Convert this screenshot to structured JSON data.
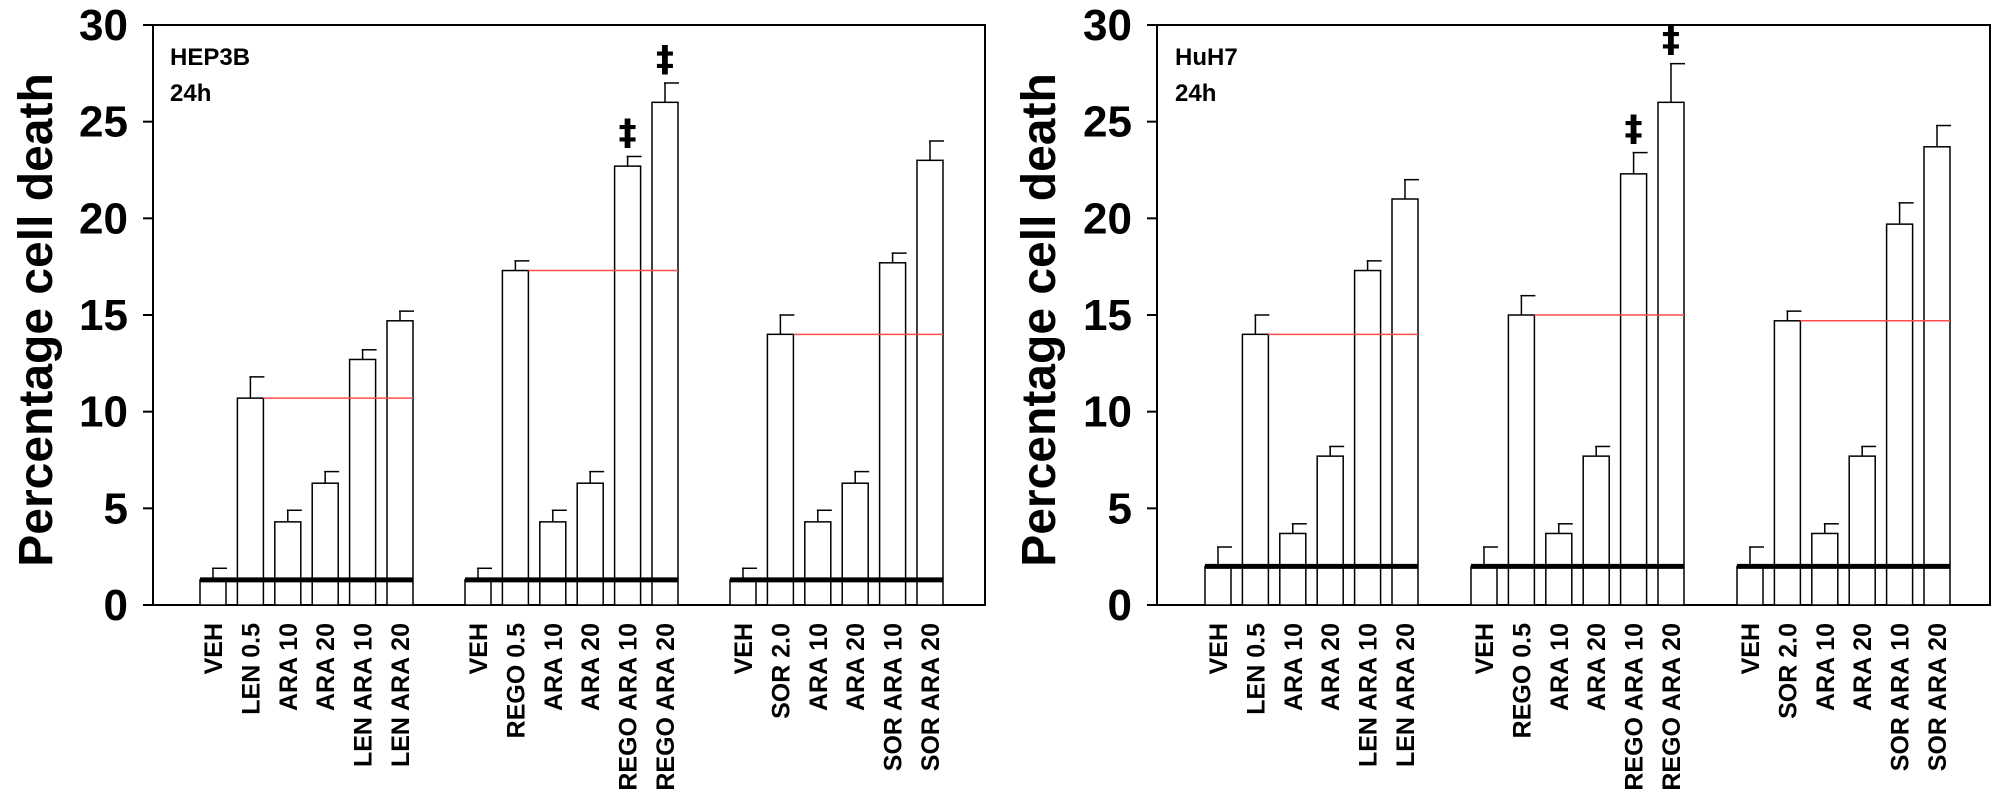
{
  "chart_data": [
    {
      "type": "bar",
      "panel_labels": [
        "HEP3B",
        "24h"
      ],
      "ylabel": "Percentage cell death",
      "ylim": [
        0,
        30
      ],
      "yticks": [
        "0",
        "5",
        "10",
        "15",
        "20",
        "25",
        "30"
      ],
      "groups": [
        {
          "categories": [
            "VEH",
            "LEN 0.5",
            "ARA 10",
            "ARA 20",
            "LEN ARA 10",
            "LEN ARA 20"
          ],
          "values": [
            1.3,
            10.7,
            4.3,
            6.3,
            12.7,
            14.7
          ],
          "errors": [
            0.6,
            1.1,
            0.6,
            0.6,
            0.5,
            0.5
          ],
          "reference_line": 10.7,
          "baseline": 1.3,
          "markers": [
            "",
            "",
            "",
            "",
            "",
            ""
          ]
        },
        {
          "categories": [
            "VEH",
            "REGO 0.5",
            "ARA 10",
            "ARA 20",
            "REGO ARA 10",
            "REGO ARA 20"
          ],
          "values": [
            1.3,
            17.3,
            4.3,
            6.3,
            22.7,
            26.0
          ],
          "errors": [
            0.6,
            0.5,
            0.6,
            0.6,
            0.5,
            1.0
          ],
          "reference_line": 17.3,
          "baseline": 1.3,
          "markers": [
            "",
            "",
            "",
            "",
            "‡",
            "‡"
          ]
        },
        {
          "categories": [
            "VEH",
            "SOR 2.0",
            "ARA 10",
            "ARA 20",
            "SOR ARA 10",
            "SOR ARA 20"
          ],
          "values": [
            1.3,
            14.0,
            4.3,
            6.3,
            17.7,
            23.0
          ],
          "errors": [
            0.6,
            1.0,
            0.6,
            0.6,
            0.5,
            1.0
          ],
          "reference_line": 14.0,
          "baseline": 1.3,
          "markers": [
            "",
            "",
            "",
            "",
            "",
            ""
          ]
        }
      ]
    },
    {
      "type": "bar",
      "panel_labels": [
        "HuH7",
        "24h"
      ],
      "ylabel": "Percentage cell death",
      "ylim": [
        0,
        30
      ],
      "yticks": [
        "0",
        "5",
        "10",
        "15",
        "20",
        "25",
        "30"
      ],
      "groups": [
        {
          "categories": [
            "VEH",
            "LEN 0.5",
            "ARA 10",
            "ARA 20",
            "LEN ARA 10",
            "LEN ARA 20"
          ],
          "values": [
            2.0,
            14.0,
            3.7,
            7.7,
            17.3,
            21.0
          ],
          "errors": [
            1.0,
            1.0,
            0.5,
            0.5,
            0.5,
            1.0
          ],
          "reference_line": 14.0,
          "baseline": 2.0,
          "markers": [
            "",
            "",
            "",
            "",
            "",
            ""
          ]
        },
        {
          "categories": [
            "VEH",
            "REGO 0.5",
            "ARA 10",
            "ARA 20",
            "REGO ARA 10",
            "REGO ARA 20"
          ],
          "values": [
            2.0,
            15.0,
            3.7,
            7.7,
            22.3,
            26.0
          ],
          "errors": [
            1.0,
            1.0,
            0.5,
            0.5,
            1.1,
            2.0
          ],
          "reference_line": 15.0,
          "baseline": 2.0,
          "markers": [
            "",
            "",
            "",
            "",
            "‡",
            "‡"
          ]
        },
        {
          "categories": [
            "VEH",
            "SOR 2.0",
            "ARA 10",
            "ARA 20",
            "SOR ARA 10",
            "SOR ARA 20"
          ],
          "values": [
            2.0,
            14.7,
            3.7,
            7.7,
            19.7,
            23.7
          ],
          "errors": [
            1.0,
            0.5,
            0.5,
            0.5,
            1.1,
            1.1
          ],
          "reference_line": 14.7,
          "baseline": 2.0,
          "markers": [
            "",
            "",
            "",
            "",
            "",
            ""
          ]
        }
      ]
    }
  ],
  "colors": {
    "bar_fill": "#ffffff",
    "bar_stroke": "#000000",
    "reference_line": "#ff4d4d",
    "baseline": "#000000"
  }
}
